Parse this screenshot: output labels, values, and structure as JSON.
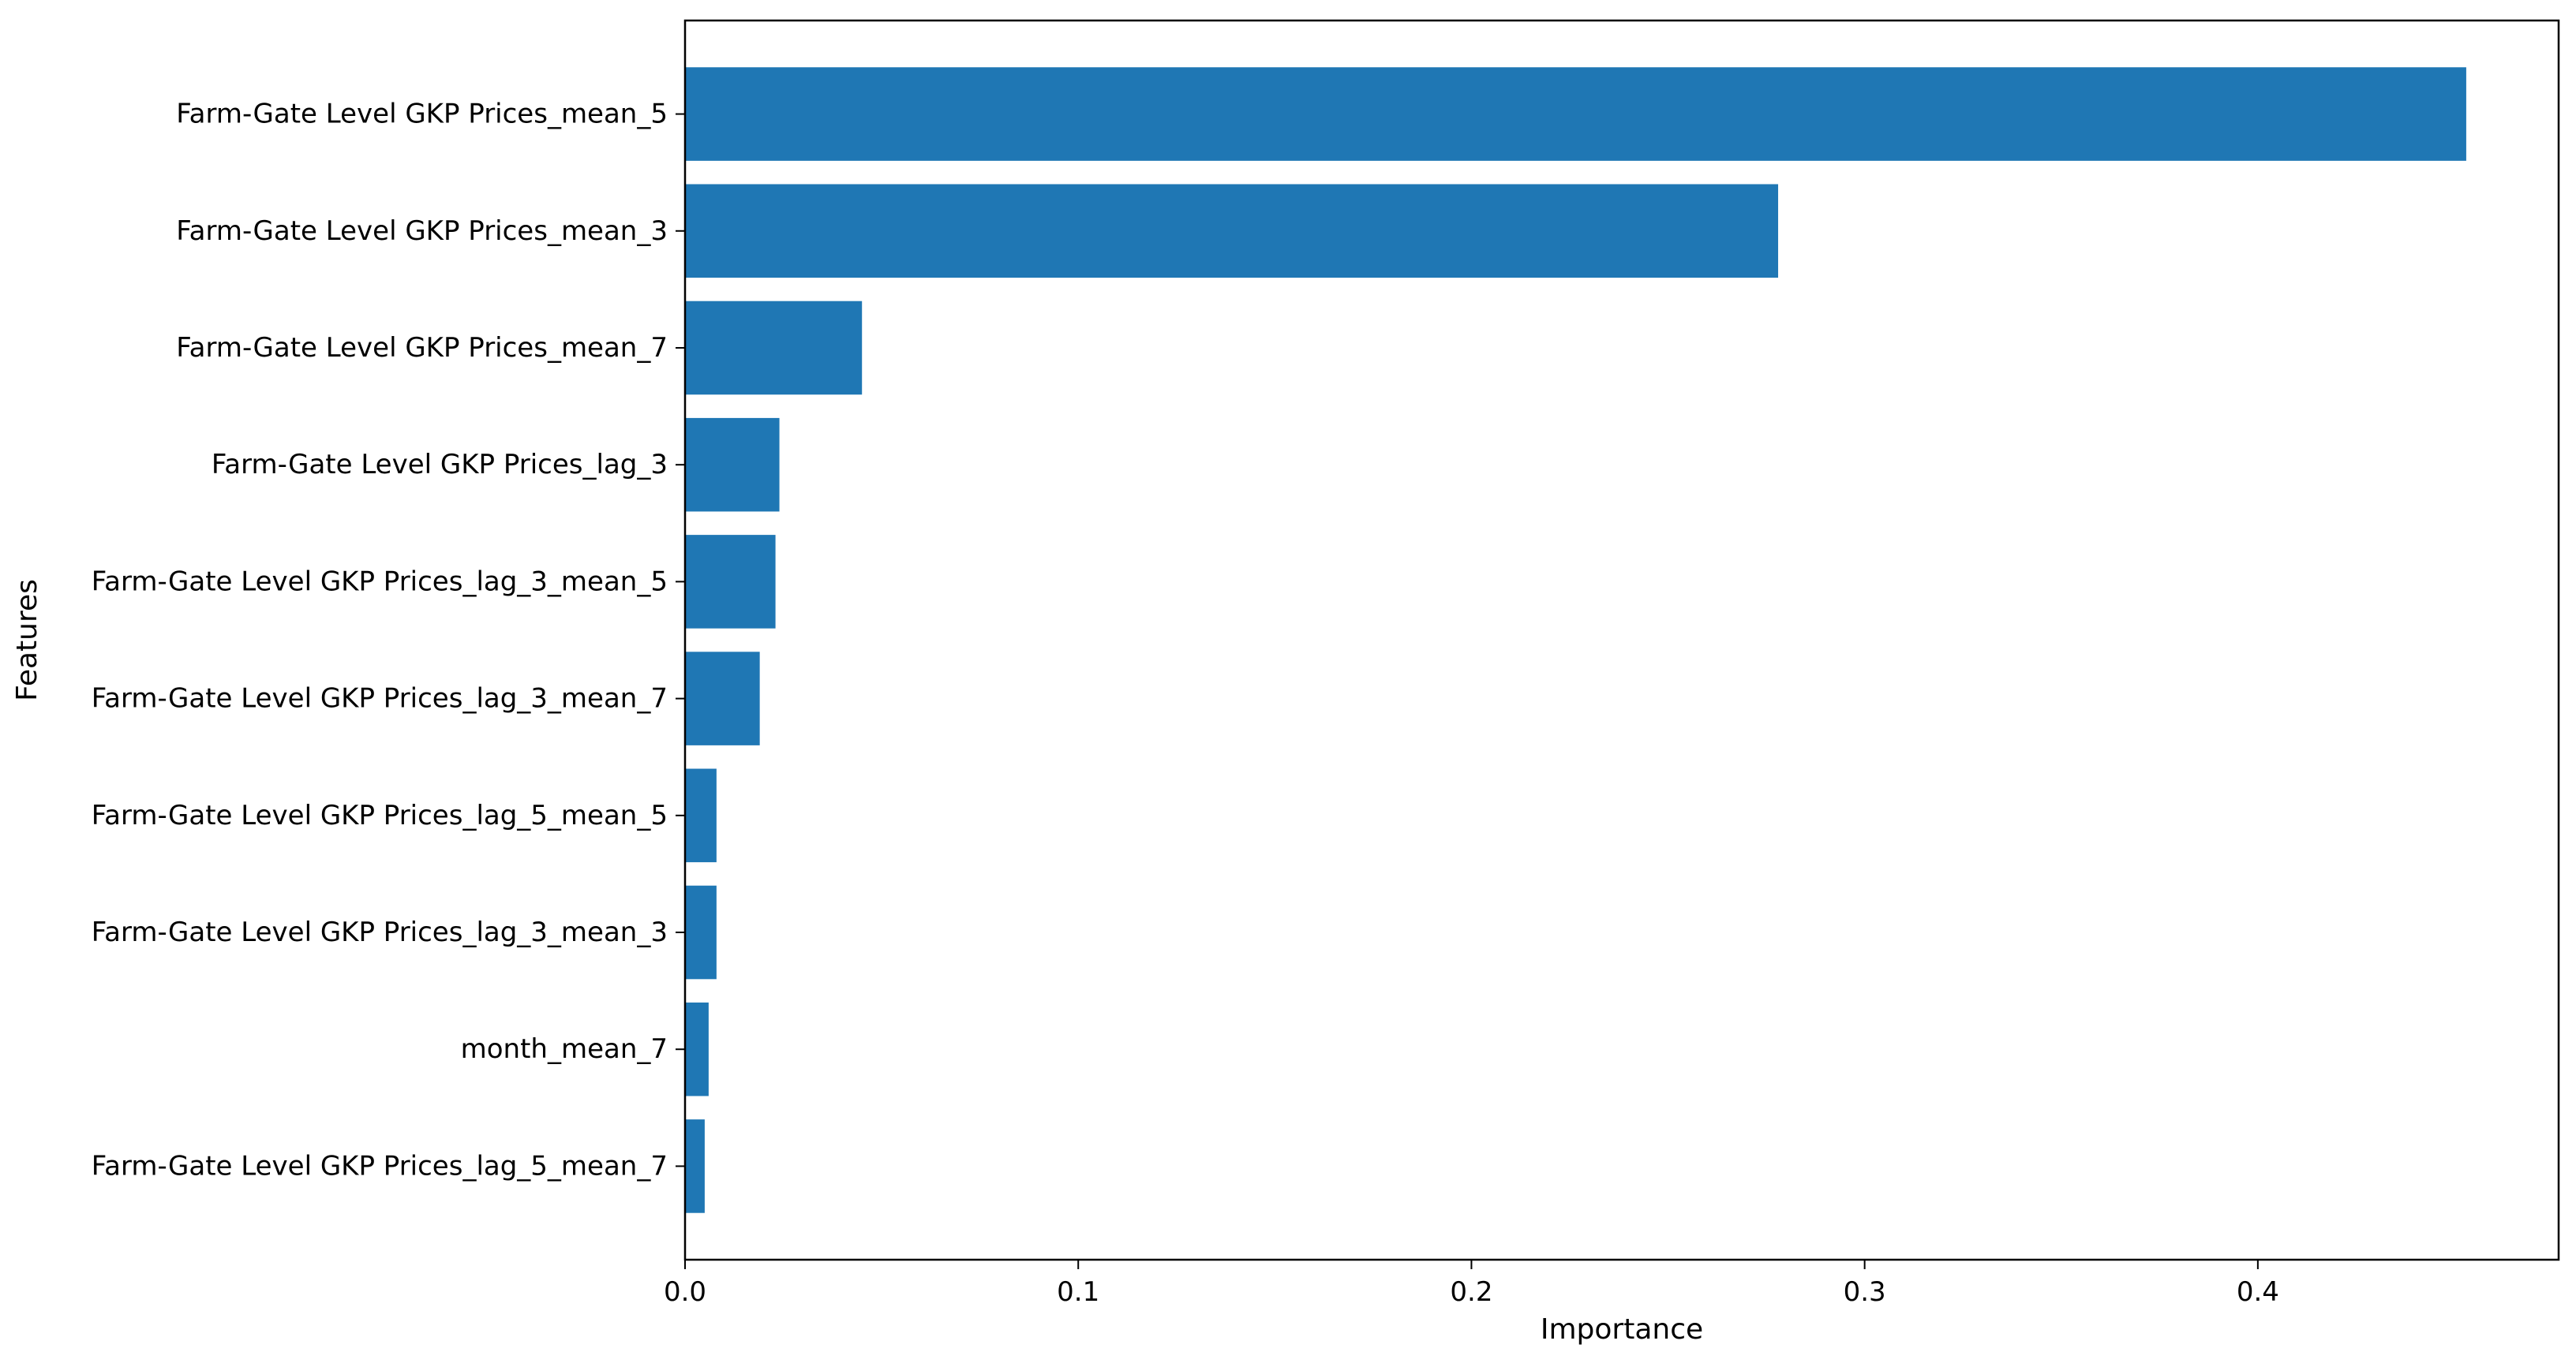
{
  "chart_data": {
    "type": "bar",
    "orientation": "horizontal",
    "categories": [
      "Farm-Gate Level GKP Prices_mean_5",
      "Farm-Gate Level GKP Prices_mean_3",
      "Farm-Gate Level GKP Prices_mean_7",
      "Farm-Gate Level GKP Prices_lag_3",
      "Farm-Gate Level GKP Prices_lag_3_mean_5",
      "Farm-Gate Level GKP Prices_lag_3_mean_7",
      "Farm-Gate Level GKP Prices_lag_5_mean_5",
      "Farm-Gate Level GKP Prices_lag_3_mean_3",
      "month_mean_7",
      "Farm-Gate Level GKP Prices_lag_5_mean_7"
    ],
    "values": [
      0.453,
      0.278,
      0.045,
      0.024,
      0.023,
      0.019,
      0.008,
      0.008,
      0.006,
      0.005
    ],
    "xlabel": "Importance",
    "ylabel": "Features",
    "xlim": [
      0,
      0.4765
    ],
    "xticks": [
      0.0,
      0.1,
      0.2,
      0.3,
      0.4
    ],
    "xtick_labels": [
      "0.0",
      "0.1",
      "0.2",
      "0.3",
      "0.4"
    ],
    "grid": false,
    "bar_color": "#1f77b4"
  }
}
